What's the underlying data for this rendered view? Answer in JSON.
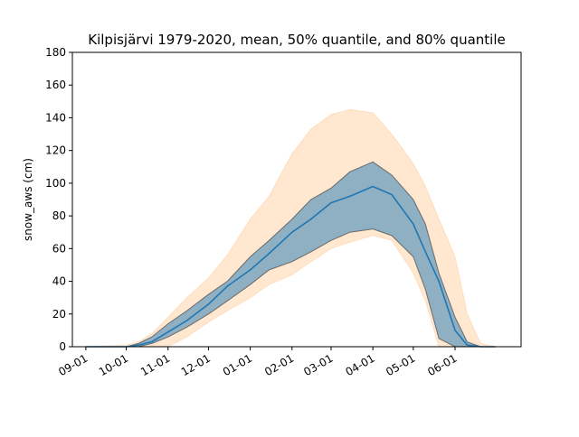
{
  "chart_data": {
    "type": "area",
    "title": "Kilpisjärvi 1979-2020, mean, 50% quantile, and 80% quantile",
    "xlabel": "",
    "ylabel": "snow_aws (cm)",
    "xlim": [
      "2019-08-22",
      "2020-07-20"
    ],
    "ylim": [
      0,
      180
    ],
    "y_ticks": [
      0,
      20,
      40,
      60,
      80,
      100,
      120,
      140,
      160,
      180
    ],
    "x_ticks": [
      {
        "date": "2019-09-01",
        "label": "09-01"
      },
      {
        "date": "2019-10-01",
        "label": "10-01"
      },
      {
        "date": "2019-11-01",
        "label": "11-01"
      },
      {
        "date": "2019-12-01",
        "label": "12-01"
      },
      {
        "date": "2020-01-01",
        "label": "01-01"
      },
      {
        "date": "2020-02-01",
        "label": "02-01"
      },
      {
        "date": "2020-03-01",
        "label": "03-01"
      },
      {
        "date": "2020-04-01",
        "label": "04-01"
      },
      {
        "date": "2020-05-01",
        "label": "05-01"
      },
      {
        "date": "2020-06-01",
        "label": "06-01"
      }
    ],
    "grid": false,
    "legend": "none",
    "colors": {
      "mean": "#1f77b4",
      "q50_fill": "#1f77b4",
      "q80_fill": "#ffbb78"
    },
    "series": [
      {
        "kind": "band",
        "x": [
          "2019-09-01",
          "2019-10-01",
          "2019-10-10",
          "2019-10-20",
          "2019-11-01",
          "2019-11-15",
          "2019-12-01",
          "2019-12-15",
          "2020-01-01",
          "2020-01-15",
          "2020-02-01",
          "2020-02-15",
          "2020-03-01",
          "2020-03-15",
          "2020-04-01",
          "2020-04-15",
          "2020-05-01",
          "2020-05-10",
          "2020-05-20",
          "2020-06-01",
          "2020-06-10",
          "2020-06-20",
          "2020-07-01"
        ],
        "lower": [
          0,
          0,
          0,
          0,
          0,
          6,
          15,
          22,
          30,
          38,
          44,
          52,
          60,
          64,
          68,
          65,
          45,
          28,
          0,
          0,
          0,
          0,
          0
        ],
        "upper": [
          0,
          1,
          3,
          8,
          18,
          30,
          42,
          56,
          78,
          92,
          118,
          133,
          142,
          145,
          143,
          130,
          112,
          98,
          78,
          55,
          20,
          2,
          0
        ]
      },
      {
        "kind": "band",
        "x": [
          "2019-09-01",
          "2019-10-01",
          "2019-10-10",
          "2019-10-20",
          "2019-11-01",
          "2019-11-15",
          "2019-12-01",
          "2019-12-15",
          "2020-01-01",
          "2020-01-15",
          "2020-02-01",
          "2020-02-15",
          "2020-03-01",
          "2020-03-15",
          "2020-04-01",
          "2020-04-15",
          "2020-05-01",
          "2020-05-10",
          "2020-05-20",
          "2020-06-01",
          "2020-06-10",
          "2020-06-20",
          "2020-07-01"
        ],
        "lower": [
          0,
          0,
          0,
          2,
          6,
          12,
          20,
          28,
          38,
          47,
          52,
          58,
          65,
          70,
          72,
          68,
          55,
          35,
          5,
          0,
          0,
          0,
          0
        ],
        "upper": [
          0,
          0,
          2,
          6,
          14,
          22,
          32,
          40,
          55,
          65,
          78,
          90,
          97,
          107,
          113,
          105,
          90,
          75,
          45,
          18,
          3,
          0,
          0
        ]
      },
      {
        "kind": "line",
        "x": [
          "2019-09-01",
          "2019-10-01",
          "2019-10-10",
          "2019-10-20",
          "2019-11-01",
          "2019-11-15",
          "2019-12-01",
          "2019-12-15",
          "2020-01-01",
          "2020-01-15",
          "2020-02-01",
          "2020-02-15",
          "2020-03-01",
          "2020-03-15",
          "2020-04-01",
          "2020-04-15",
          "2020-05-01",
          "2020-05-10",
          "2020-05-20",
          "2020-06-01",
          "2020-06-10",
          "2020-06-20",
          "2020-07-01"
        ],
        "values": [
          0,
          0,
          1,
          3,
          9,
          16,
          26,
          37,
          47,
          57,
          70,
          78,
          88,
          92,
          98,
          93,
          75,
          58,
          40,
          10,
          1,
          0,
          0
        ]
      }
    ]
  }
}
